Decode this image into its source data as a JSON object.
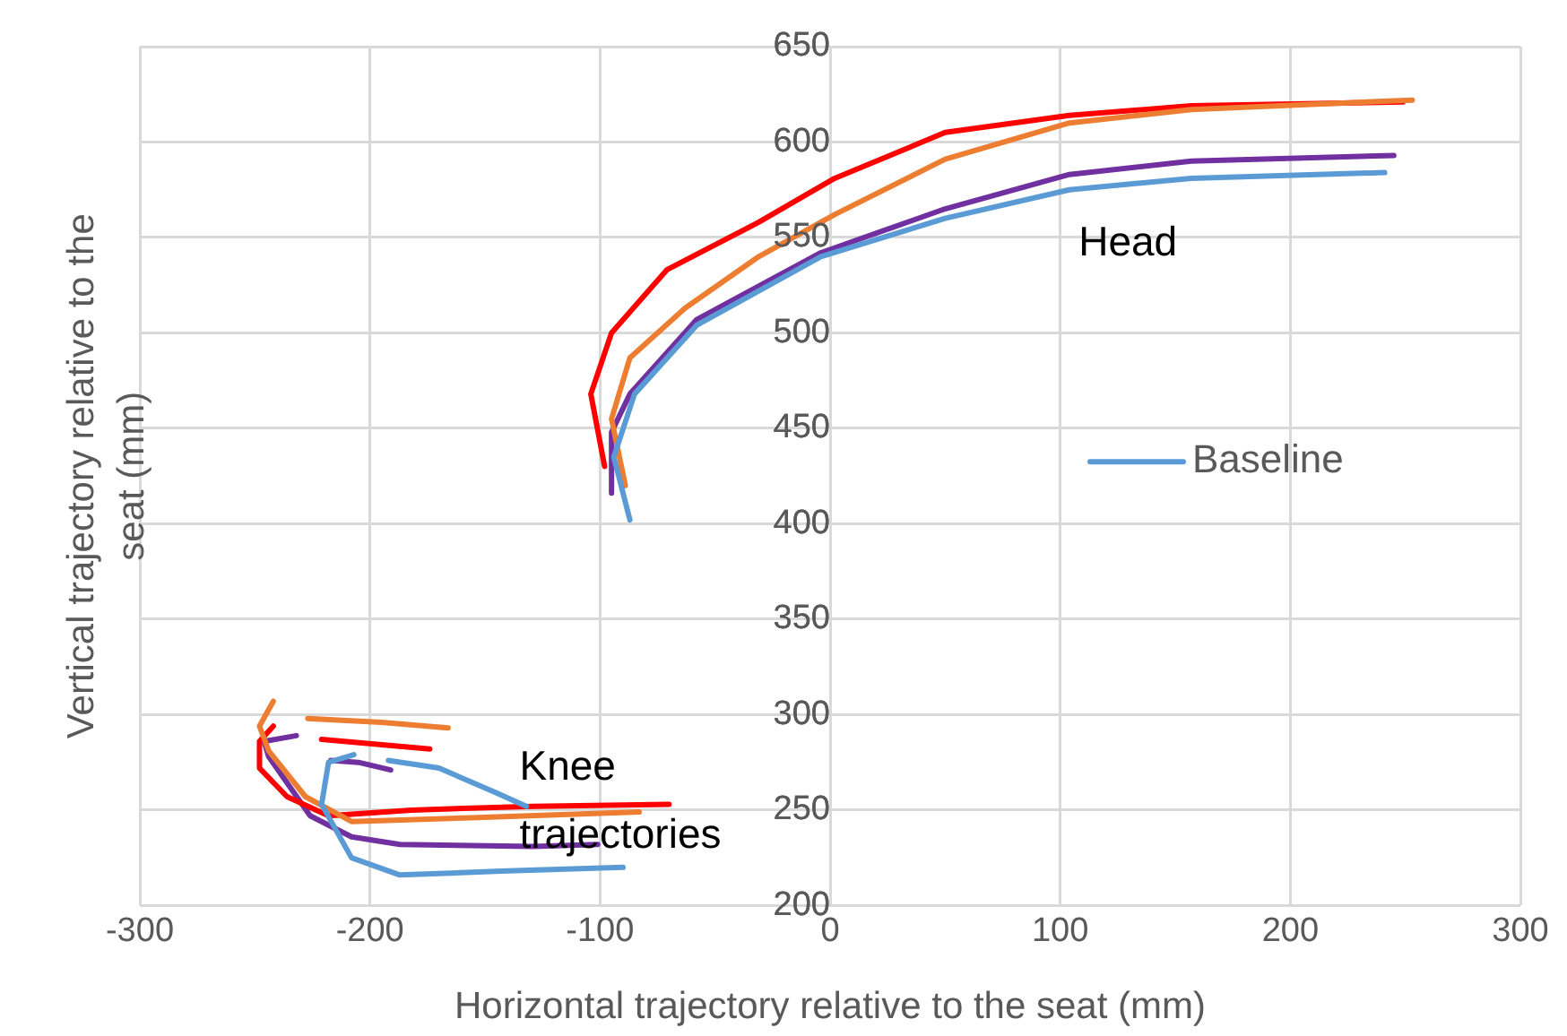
{
  "chart_data": {
    "type": "line",
    "xlabel": "Horizontal trajectory relative to the seat (mm)",
    "ylabel": "Vertical trajectory relative to the seat (mm)",
    "xlim": [
      -300,
      300
    ],
    "xticks": [
      -300,
      -200,
      -100,
      0,
      100,
      200,
      300
    ],
    "ylim": [
      200,
      650
    ],
    "yticks": [
      200,
      250,
      300,
      350,
      400,
      450,
      500,
      550,
      600,
      650
    ],
    "grid": true,
    "legend": "right",
    "marker": "none",
    "line_style": "solid",
    "annotations": [
      "Head",
      "Knee trajectories"
    ],
    "series": [
      {
        "name": "Baseline",
        "color": "#5b9bd5",
        "x": [
          -87,
          -94,
          -85,
          -58,
          -4,
          50,
          104,
          157,
          241,
          null,
          -207,
          -218,
          -221,
          -208,
          -187,
          -143,
          -90,
          null,
          -192,
          -170,
          -145,
          -132
        ],
        "values": [
          402,
          435,
          468,
          504,
          540,
          560,
          575,
          581,
          584,
          null,
          279,
          275,
          253,
          225,
          216,
          218,
          220,
          null,
          276,
          272,
          259,
          252
        ]
      },
      {
        "color": "#ed7d31",
        "x": [
          -89,
          -95,
          -87,
          -63,
          -31,
          2,
          50,
          104,
          157,
          253,
          null,
          -242,
          -248,
          -244,
          -228,
          -208,
          -156,
          -83,
          null,
          -227,
          -195,
          -166
        ],
        "values": [
          420,
          455,
          487,
          513,
          540,
          562,
          591,
          610,
          617,
          622,
          null,
          307,
          294,
          281,
          257,
          244,
          246,
          249,
          null,
          298,
          296,
          293
        ]
      },
      {
        "color": "#ff0000",
        "x": [
          -98,
          -104,
          -95,
          -71,
          -31,
          2,
          50,
          104,
          157,
          249,
          null,
          -242,
          -248,
          -248,
          -236,
          -218,
          -182,
          -129,
          -70,
          null,
          -221,
          -174
        ],
        "values": [
          430,
          468,
          500,
          533,
          558,
          581,
          605,
          614,
          619,
          621,
          null,
          294,
          286,
          272,
          257,
          247,
          250,
          252,
          253,
          null,
          287,
          282
        ]
      },
      {
        "color": "#7030a0",
        "x": [
          -95,
          -95,
          -87,
          -58,
          -4,
          50,
          104,
          157,
          245,
          null,
          -232,
          -246,
          -244,
          -226,
          -208,
          -187,
          -129,
          -101,
          null,
          -217,
          -205,
          -191
        ],
        "values": [
          416,
          448,
          468,
          507,
          542,
          565,
          583,
          590,
          593,
          null,
          289,
          286,
          278,
          247,
          236,
          232,
          231,
          232,
          null,
          276,
          275,
          271
        ]
      }
    ]
  }
}
